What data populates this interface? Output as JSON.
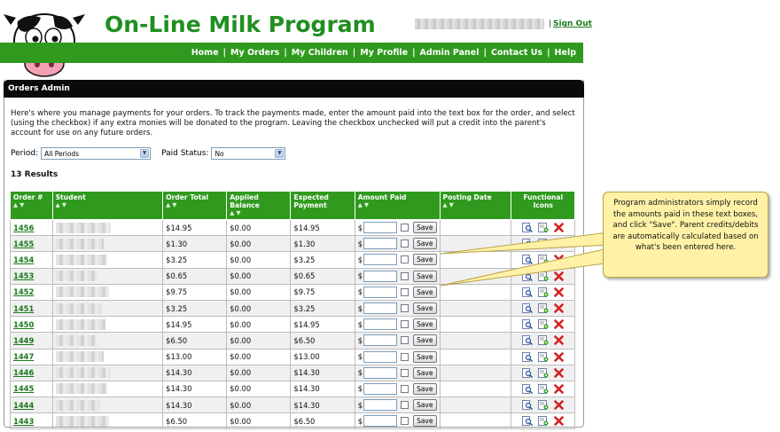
{
  "app": {
    "title": "On-Line Milk Program",
    "signout_sep": "|",
    "signout": "Sign Out"
  },
  "nav": {
    "items": [
      "Home",
      "My Orders",
      "My Children",
      "My Profile",
      "Admin Panel",
      "Contact Us",
      "Help"
    ]
  },
  "panel": {
    "title": "Orders Admin",
    "intro": "Here's where you manage payments for your orders.  To track the payments made, enter the amount paid into the text box for the order, and select (using the checkbox) if any extra monies will be donated to the program.  Leaving the checkbox unchecked will put a credit into the parent's account for use on any future orders.",
    "period_label": "Period:",
    "period_value": "All Periods",
    "paid_status_label": "Paid Status:",
    "paid_status_value": "No",
    "results": "13 Results"
  },
  "table": {
    "headers": [
      "Order #",
      "Student",
      "Order Total",
      "Applied Balance",
      "Expected Payment",
      "Amount Paid",
      "Posting Date",
      "Functional Icons"
    ],
    "sort_glyph": "▲ ▼",
    "currency": "$",
    "save_label": "Save",
    "rows": [
      {
        "order": "1456",
        "total": "$14.95",
        "applied": "$0.00",
        "expected": "$14.95"
      },
      {
        "order": "1455",
        "total": "$1.30",
        "applied": "$0.00",
        "expected": "$1.30"
      },
      {
        "order": "1454",
        "total": "$3.25",
        "applied": "$0.00",
        "expected": "$3.25"
      },
      {
        "order": "1453",
        "total": "$0.65",
        "applied": "$0.00",
        "expected": "$0.65"
      },
      {
        "order": "1452",
        "total": "$9.75",
        "applied": "$0.00",
        "expected": "$9.75"
      },
      {
        "order": "1451",
        "total": "$3.25",
        "applied": "$0.00",
        "expected": "$3.25"
      },
      {
        "order": "1450",
        "total": "$14.95",
        "applied": "$0.00",
        "expected": "$14.95"
      },
      {
        "order": "1449",
        "total": "$6.50",
        "applied": "$0.00",
        "expected": "$6.50"
      },
      {
        "order": "1447",
        "total": "$13.00",
        "applied": "$0.00",
        "expected": "$13.00"
      },
      {
        "order": "1446",
        "total": "$14.30",
        "applied": "$0.00",
        "expected": "$14.30"
      },
      {
        "order": "1445",
        "total": "$14.30",
        "applied": "$0.00",
        "expected": "$14.30"
      },
      {
        "order": "1444",
        "total": "$14.30",
        "applied": "$0.00",
        "expected": "$14.30"
      },
      {
        "order": "1443",
        "total": "$6.50",
        "applied": "$0.00",
        "expected": "$6.50"
      }
    ]
  },
  "callout": {
    "text": "Program administrators simply record the amounts paid in these text boxes, and click \"Save\".  Parent credits/debits are automatically calculated based on what's been entered here."
  },
  "icons": [
    "cow-logo-icon",
    "view-icon",
    "edit-icon",
    "delete-icon"
  ],
  "colors": {
    "brand_green": "#2f9a1e",
    "title_green": "#1f8f1f",
    "header_black": "#0a0a0a",
    "callout_yellow": "#fff2a6",
    "delete_red": "#d42020"
  }
}
